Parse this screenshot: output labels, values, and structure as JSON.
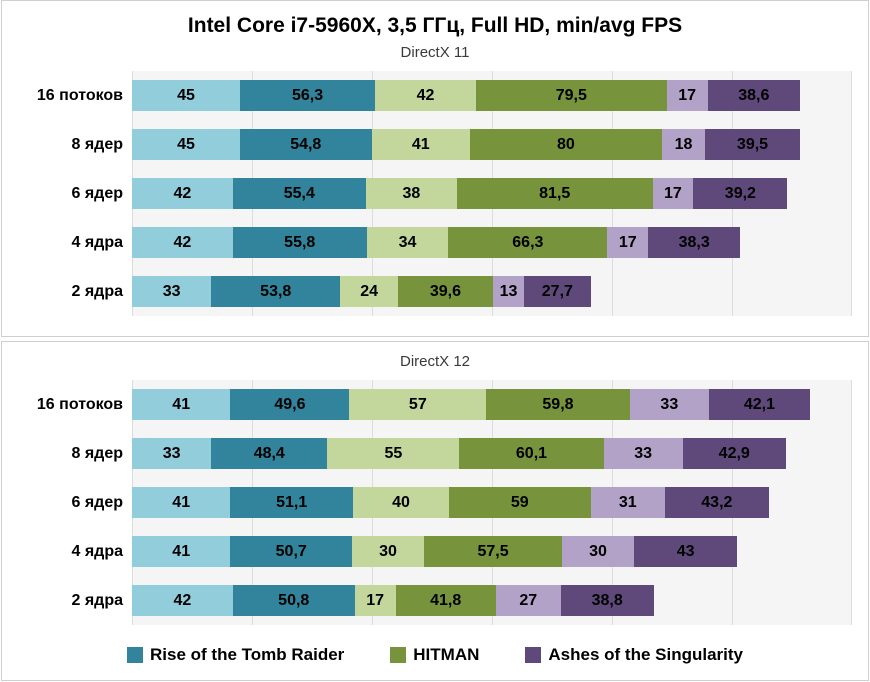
{
  "title": "Intel Core i7-5960X, 3,5 ГГц, Full HD, min/avg FPS",
  "decimal_separator": ",",
  "colors": {
    "plot_background": "#f5f5f6",
    "gridline": "#dcdcdc",
    "panel_border": "#cfcfcf",
    "rotr_min": "#92CDDC",
    "rotr_avg": "#31849B",
    "hitman_min": "#C3D69B",
    "hitman_avg": "#77933C",
    "ashes_min": "#B2A2C7",
    "ashes_avg": "#5F497A"
  },
  "chart_data": [
    {
      "type": "bar",
      "orientation": "horizontal",
      "stacked": true,
      "subtitle": "DirectX 11",
      "categories": [
        "16 потоков",
        "8 ядер",
        "6 ядер",
        "4 ядра",
        "2 ядра"
      ],
      "xlim": [
        0,
        300
      ],
      "gridline_step": 50,
      "grid": true,
      "series": [
        {
          "name": "Rise of the Tomb Raider (min)",
          "color": "#92CDDC",
          "values": [
            45,
            45,
            42,
            42,
            33
          ]
        },
        {
          "name": "Rise of the Tomb Raider (avg)",
          "color": "#31849B",
          "values": [
            56.3,
            54.8,
            55.4,
            55.8,
            53.8
          ]
        },
        {
          "name": "HITMAN (min)",
          "color": "#C3D69B",
          "values": [
            42,
            41,
            38,
            34,
            24
          ]
        },
        {
          "name": "HITMAN (avg)",
          "color": "#77933C",
          "values": [
            79.5,
            80,
            81.5,
            66.3,
            39.6
          ]
        },
        {
          "name": "Ashes of the Singularity (min)",
          "color": "#B2A2C7",
          "values": [
            17,
            18,
            17,
            17,
            13
          ]
        },
        {
          "name": "Ashes of the Singularity (avg)",
          "color": "#5F497A",
          "values": [
            38.6,
            39.5,
            39.2,
            38.3,
            27.7
          ]
        }
      ]
    },
    {
      "type": "bar",
      "orientation": "horizontal",
      "stacked": true,
      "subtitle": "DirectX 12",
      "categories": [
        "16 потоков",
        "8 ядер",
        "6 ядер",
        "4 ядра",
        "2 ядра"
      ],
      "xlim": [
        0,
        300
      ],
      "gridline_step": 50,
      "grid": true,
      "series": [
        {
          "name": "Rise of the Tomb Raider (min)",
          "color": "#92CDDC",
          "values": [
            41,
            33,
            41,
            41,
            42
          ]
        },
        {
          "name": "Rise of the Tomb Raider (avg)",
          "color": "#31849B",
          "values": [
            49.6,
            48.4,
            51.1,
            50.7,
            50.8
          ]
        },
        {
          "name": "HITMAN (min)",
          "color": "#C3D69B",
          "values": [
            57,
            55,
            40,
            30,
            17
          ]
        },
        {
          "name": "HITMAN (avg)",
          "color": "#77933C",
          "values": [
            59.8,
            60.1,
            59,
            57.5,
            41.8
          ]
        },
        {
          "name": "Ashes of the Singularity (min)",
          "color": "#B2A2C7",
          "values": [
            33,
            33,
            31,
            30,
            27
          ]
        },
        {
          "name": "Ashes of the Singularity (avg)",
          "color": "#5F497A",
          "values": [
            42.1,
            42.9,
            43.2,
            43,
            38.8
          ]
        }
      ]
    }
  ],
  "legend": {
    "position": "bottom",
    "items": [
      {
        "label": "Rise of the Tomb Raider",
        "color": "#31849B"
      },
      {
        "label": "HITMAN",
        "color": "#77933C"
      },
      {
        "label": "Ashes of the Singularity",
        "color": "#5F497A"
      }
    ]
  }
}
